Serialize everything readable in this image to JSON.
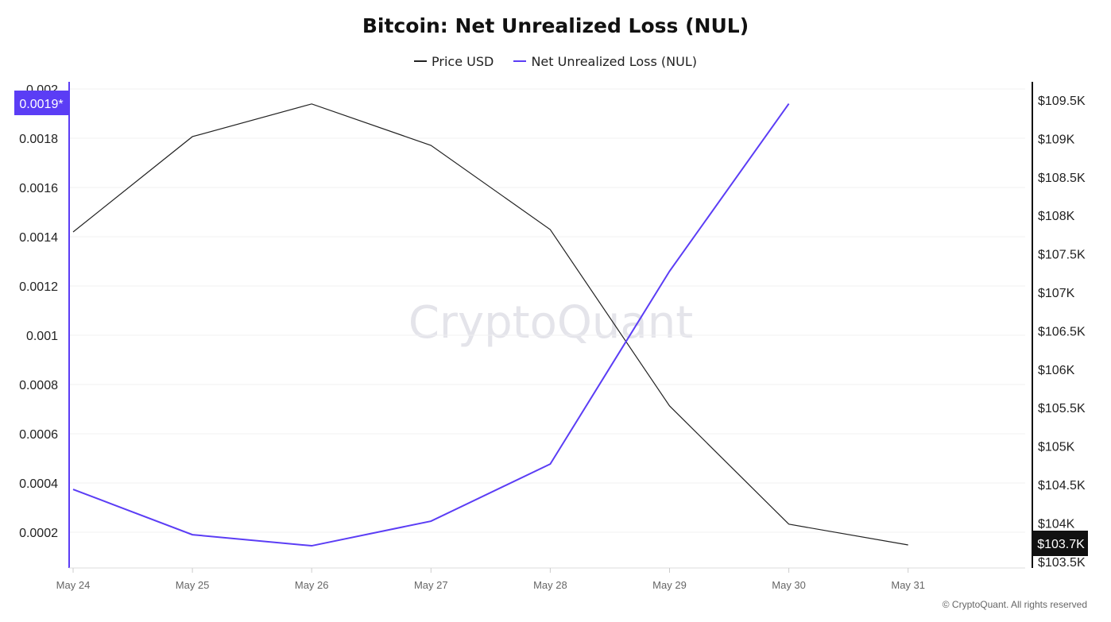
{
  "chart_data": {
    "type": "line",
    "title": "Bitcoin: Net Unrealized Loss (NUL)",
    "x": [
      "May 24",
      "May 25",
      "May 26",
      "May 27",
      "May 28",
      "May 29",
      "May 30",
      "May 31"
    ],
    "series": [
      {
        "name": "Price USD",
        "axis": "right",
        "color": "#222222",
        "values": [
          107785,
          109025,
          109450,
          108911,
          107816,
          105523,
          103985,
          103715
        ]
      },
      {
        "name": "Net Unrealized Loss (NUL)",
        "axis": "left",
        "color": "#5b3df5",
        "values": [
          0.000374,
          0.00019,
          0.000145,
          0.000245,
          0.000477,
          0.00126,
          0.00194,
          null
        ]
      }
    ],
    "left_axis": {
      "ticks": [
        "0.0002",
        "0.0004",
        "0.0006",
        "0.0008",
        "0.001",
        "0.0012",
        "0.0014",
        "0.0016",
        "0.0018",
        "0.002"
      ],
      "ylim": [
        5.5e-05,
        0.002
      ],
      "current_label": "0.0019*"
    },
    "right_axis": {
      "ticks": [
        "$103.5K",
        "$104K",
        "$104.5K",
        "$105K",
        "$105.5K",
        "$106K",
        "$106.5K",
        "$107K",
        "$107.5K",
        "$108K",
        "$108.5K",
        "$109K",
        "$109.5K"
      ],
      "ylim": [
        103500,
        109750
      ],
      "current_label": "$103.7K"
    },
    "grid": true,
    "legend_position": "top-center",
    "watermark": "CryptoQuant"
  },
  "footer": {
    "copyright": "© CryptoQuant. All rights reserved"
  }
}
